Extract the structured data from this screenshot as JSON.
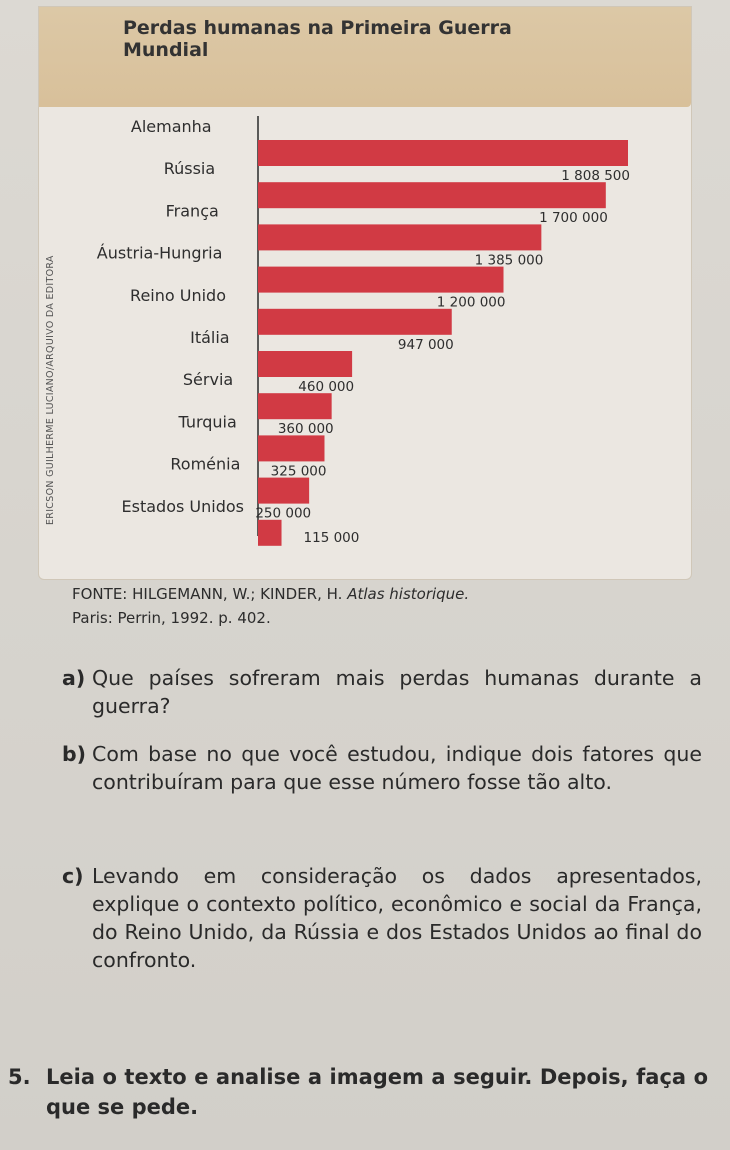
{
  "chart_data": {
    "type": "bar",
    "orientation": "horizontal",
    "title": "Perdas humanas na Primeira Guerra Mundial",
    "categories": [
      "Alemanha",
      "Rússia",
      "França",
      "Áustria-Hungria",
      "Reino Unido",
      "Itália",
      "Sérvia",
      "Turquia",
      "Roménia",
      "Estados Unidos"
    ],
    "values": [
      1808500,
      1700000,
      1385000,
      1200000,
      947000,
      460000,
      360000,
      325000,
      250000,
      115000
    ],
    "value_labels": [
      "1 808 500",
      "1 700 000",
      "1 385 000",
      "1 200 000",
      "947 000",
      "460 000",
      "360 000",
      "325 000",
      "250 000",
      "115 000"
    ],
    "bar_color": "#d13a44",
    "xlim": [
      0,
      1808500
    ],
    "grid": false,
    "legend": "none"
  },
  "credit": "ERICSON GUILHERME LUCIANO/ARQUIVO DA EDITORA",
  "source": {
    "prefix": "FONTE: HILGEMANN, W.; KINDER, H. ",
    "work": "Atlas historique.",
    "rest": "Paris: Perrin, 1992. p. 402."
  },
  "questions": [
    {
      "letter": "a)",
      "text": "Que países sofreram mais perdas humanas durante a guerra?"
    },
    {
      "letter": "b)",
      "text": "Com base no que você estudou, indique dois fatores que contribuíram para que esse número fosse tão alto."
    },
    {
      "letter": "c)",
      "text": "Levando em consideração os dados apresentados, explique o contexto político, econômico e social da França, do Reino Unido, da Rússia e dos Estados Unidos ao final do confronto."
    }
  ],
  "exercise": {
    "number": "5.",
    "text": "Leia o texto e analise a imagem a seguir. Depois, faça o que se pede."
  }
}
